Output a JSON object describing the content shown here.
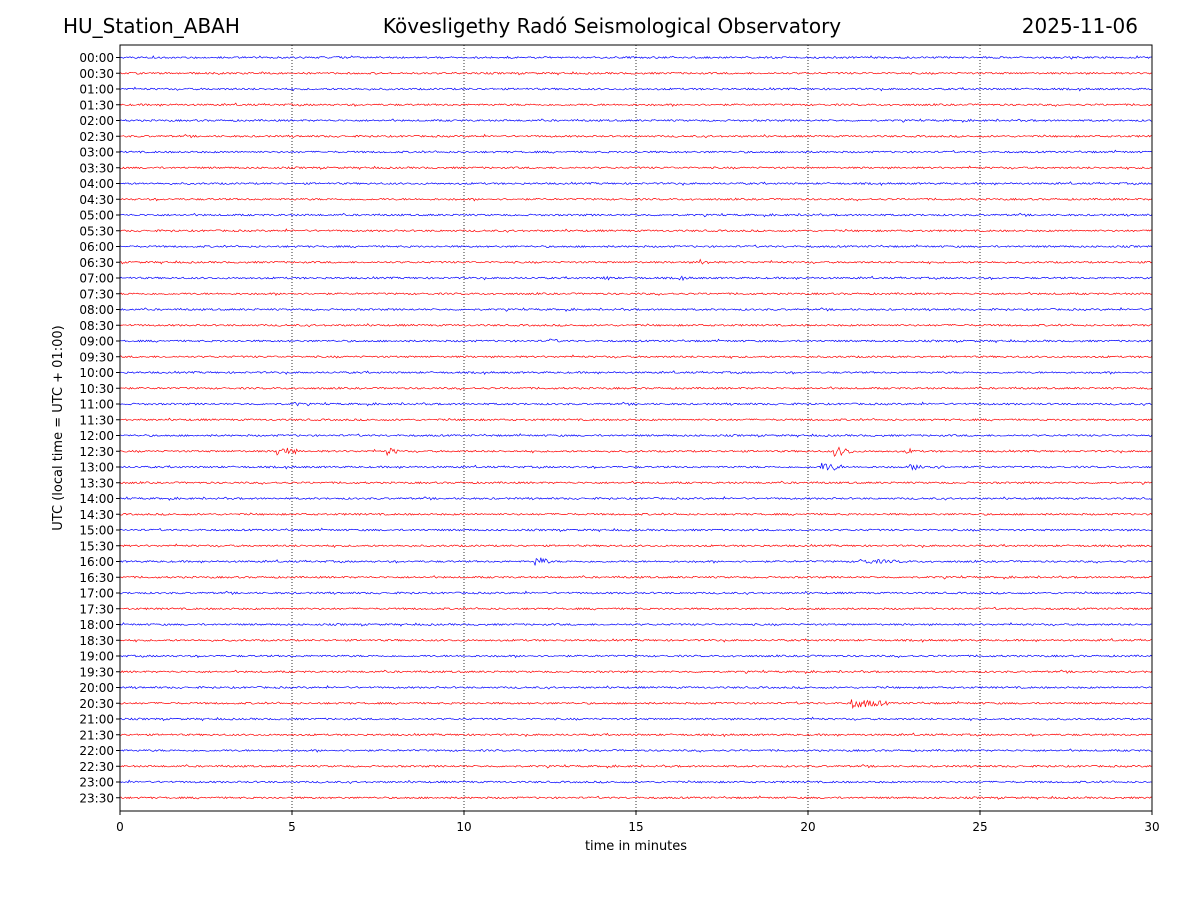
{
  "header": {
    "station": "HU_Station_ABAH",
    "observatory": "Kövesligethy Radó Seismological Observatory",
    "date": "2025-11-06"
  },
  "chart_data": {
    "type": "line",
    "title": "Kövesligethy Radó Seismological Observatory",
    "xlabel": "time in minutes",
    "ylabel": "UTC (local time = UTC + 01:00)",
    "xlim": [
      0,
      30
    ],
    "x_ticks": [
      "0",
      "5",
      "10",
      "15",
      "20",
      "25",
      "30"
    ],
    "vertical_gridlines_at": [
      5,
      10,
      15,
      20,
      25
    ],
    "trace_colors": [
      "#0000ff",
      "#ff0000"
    ],
    "rows": [
      "00:00",
      "00:30",
      "01:00",
      "01:30",
      "02:00",
      "02:30",
      "03:00",
      "03:30",
      "04:00",
      "04:30",
      "05:00",
      "05:30",
      "06:00",
      "06:30",
      "07:00",
      "07:30",
      "08:00",
      "08:30",
      "09:00",
      "09:30",
      "10:00",
      "10:30",
      "11:00",
      "11:30",
      "12:00",
      "12:30",
      "13:00",
      "13:30",
      "14:00",
      "14:30",
      "15:00",
      "15:30",
      "16:00",
      "16:30",
      "17:00",
      "17:30",
      "18:00",
      "18:30",
      "19:00",
      "19:30",
      "20:00",
      "20:30",
      "21:00",
      "21:30",
      "22:00",
      "22:30",
      "23:00",
      "23:30"
    ],
    "events": [
      {
        "row": "07:00",
        "minute": 14.1,
        "amplitude": 2.5,
        "duration": 0.3
      },
      {
        "row": "07:00",
        "minute": 16.3,
        "amplitude": 2.5,
        "duration": 0.3
      },
      {
        "row": "12:30",
        "minute": 4.6,
        "amplitude": 5,
        "duration": 0.6
      },
      {
        "row": "12:30",
        "minute": 7.8,
        "amplitude": 4,
        "duration": 0.3
      },
      {
        "row": "12:30",
        "minute": 20.8,
        "amplitude": 5,
        "duration": 0.5
      },
      {
        "row": "12:30",
        "minute": 22.9,
        "amplitude": 3,
        "duration": 0.3
      },
      {
        "row": "13:00",
        "minute": 20.4,
        "amplitude": 5,
        "duration": 0.6
      },
      {
        "row": "13:00",
        "minute": 23.0,
        "amplitude": 3,
        "duration": 1.0
      },
      {
        "row": "16:00",
        "minute": 12.1,
        "amplitude": 5,
        "duration": 0.4
      },
      {
        "row": "16:00",
        "minute": 21.5,
        "amplitude": 2.5,
        "duration": 1.5
      },
      {
        "row": "20:30",
        "minute": 21.3,
        "amplitude": 5,
        "duration": 1.0
      },
      {
        "row": "06:30",
        "minute": 16.9,
        "amplitude": 3,
        "duration": 0.3
      },
      {
        "row": "09:00",
        "minute": 12.5,
        "amplitude": 2.5,
        "duration": 0.3
      },
      {
        "row": "11:00",
        "minute": 5.1,
        "amplitude": 2.5,
        "duration": 0.2
      }
    ]
  }
}
